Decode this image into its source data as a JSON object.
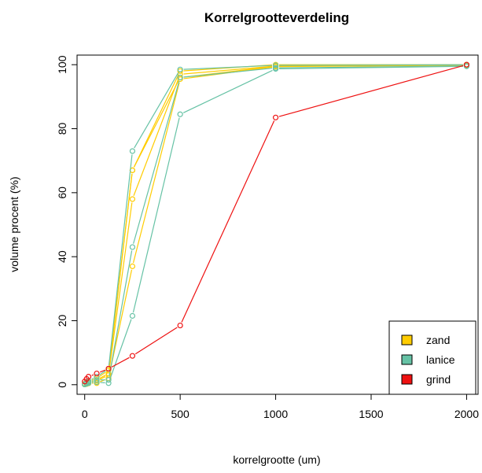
{
  "chart_data": {
    "type": "line",
    "title": "Korrelgrootteverdeling",
    "xlabel": "korrelgrootte (um)",
    "ylabel": "volume procent (%)",
    "xlim": [
      -40,
      2060
    ],
    "ylim": [
      -3,
      103
    ],
    "x_ticks": [
      0,
      500,
      1000,
      1500,
      2000
    ],
    "y_ticks": [
      0,
      20,
      40,
      60,
      80,
      100
    ],
    "grid": false,
    "legend_position": "bottom-right",
    "legend": [
      {
        "label": "zand",
        "color": "#FFCC00"
      },
      {
        "label": "lanice",
        "color": "#66C2A5"
      },
      {
        "label": "grind",
        "color": "#EE1111"
      }
    ],
    "series": [
      {
        "group": "zand",
        "color": "#FFCC00",
        "points": [
          [
            0,
            0.2
          ],
          [
            10,
            0.5
          ],
          [
            20,
            0.8
          ],
          [
            63,
            1.5
          ],
          [
            125,
            3.5
          ],
          [
            250,
            67
          ],
          [
            500,
            98
          ],
          [
            1000,
            100
          ],
          [
            2000,
            100
          ]
        ]
      },
      {
        "group": "zand",
        "color": "#FFCC00",
        "points": [
          [
            0,
            0.1
          ],
          [
            10,
            0.3
          ],
          [
            20,
            0.6
          ],
          [
            63,
            1.2
          ],
          [
            125,
            3.0
          ],
          [
            250,
            58
          ],
          [
            500,
            97
          ],
          [
            1000,
            99.6
          ],
          [
            2000,
            99.9
          ]
        ]
      },
      {
        "group": "zand",
        "color": "#FFCC00",
        "points": [
          [
            0,
            0.1
          ],
          [
            10,
            0.2
          ],
          [
            20,
            0.4
          ],
          [
            63,
            0.5
          ],
          [
            125,
            2.0
          ],
          [
            250,
            37
          ],
          [
            500,
            95.5
          ],
          [
            1000,
            99.4
          ],
          [
            2000,
            99.8
          ]
        ]
      },
      {
        "group": "zand",
        "color": "#FFCC00",
        "points": [
          [
            0,
            0.3
          ],
          [
            10,
            0.6
          ],
          [
            20,
            1.0
          ],
          [
            63,
            2.0
          ],
          [
            125,
            4.5
          ],
          [
            250,
            67
          ],
          [
            500,
            96
          ],
          [
            1000,
            99.5
          ],
          [
            2000,
            100
          ]
        ]
      },
      {
        "group": "lanice",
        "color": "#66C2A5",
        "points": [
          [
            0,
            0.2
          ],
          [
            10,
            0.6
          ],
          [
            20,
            1.2
          ],
          [
            63,
            2.5
          ],
          [
            125,
            5.0
          ],
          [
            250,
            73
          ],
          [
            500,
            98.5
          ],
          [
            1000,
            99.8
          ],
          [
            2000,
            100
          ]
        ]
      },
      {
        "group": "lanice",
        "color": "#66C2A5",
        "points": [
          [
            0,
            0.1
          ],
          [
            10,
            0.4
          ],
          [
            20,
            0.8
          ],
          [
            63,
            1.5
          ],
          [
            125,
            1.5
          ],
          [
            250,
            43
          ],
          [
            500,
            96
          ],
          [
            1000,
            99
          ],
          [
            2000,
            99.6
          ]
        ]
      },
      {
        "group": "lanice",
        "color": "#66C2A5",
        "points": [
          [
            0,
            0.1
          ],
          [
            10,
            0.3
          ],
          [
            20,
            0.5
          ],
          [
            63,
            0.8
          ],
          [
            125,
            0.5
          ],
          [
            250,
            21.5
          ],
          [
            500,
            84.5
          ],
          [
            1000,
            98.7
          ],
          [
            2000,
            99.5
          ]
        ]
      },
      {
        "group": "grind",
        "color": "#EE1111",
        "points": [
          [
            0,
            1.0
          ],
          [
            10,
            1.8
          ],
          [
            20,
            2.5
          ],
          [
            63,
            3.5
          ],
          [
            125,
            5.0
          ],
          [
            250,
            9.0
          ],
          [
            500,
            18.5
          ],
          [
            1000,
            83.5
          ],
          [
            2000,
            100
          ]
        ]
      }
    ]
  }
}
